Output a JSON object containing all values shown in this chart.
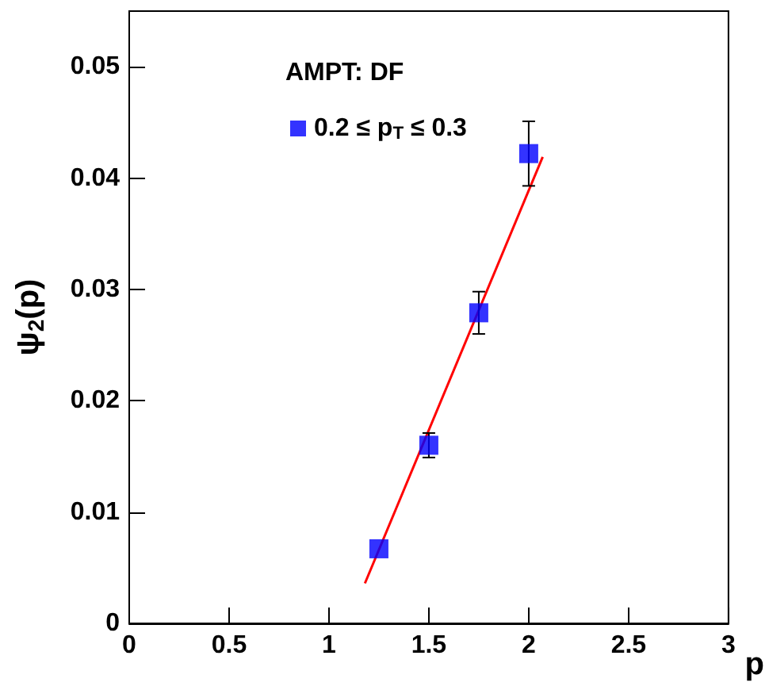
{
  "chart_data": {
    "type": "scatter",
    "xlabel": "p",
    "ylabel": "ψ$_{2}$(p)",
    "annotations": [
      "AMPT: DF"
    ],
    "series": [
      {
        "name": "0.2 ≤ p$_{T}$ ≤ 0.3",
        "color": "#0000ff",
        "marker": "square",
        "x": [
          1.25,
          1.5,
          1.75,
          2.0
        ],
        "values": [
          0.0067,
          0.016,
          0.0279,
          0.0422
        ],
        "errors": [
          null,
          0.0011,
          0.0019,
          0.0029
        ]
      },
      {
        "type": "line",
        "color": "#ff0000",
        "marker": "none",
        "line_style": "solid",
        "x": [
          1.18,
          2.07
        ],
        "values": [
          0.0036,
          0.0419
        ]
      }
    ],
    "xlim": [
      0,
      3
    ],
    "xticks": [
      0,
      0.5,
      1,
      1.5,
      2,
      2.5,
      3
    ],
    "ylim": [
      0,
      0.055
    ],
    "yticks": [
      0,
      0.01,
      0.02,
      0.03,
      0.04,
      0.05
    ],
    "grid": false,
    "legend": "top left"
  }
}
